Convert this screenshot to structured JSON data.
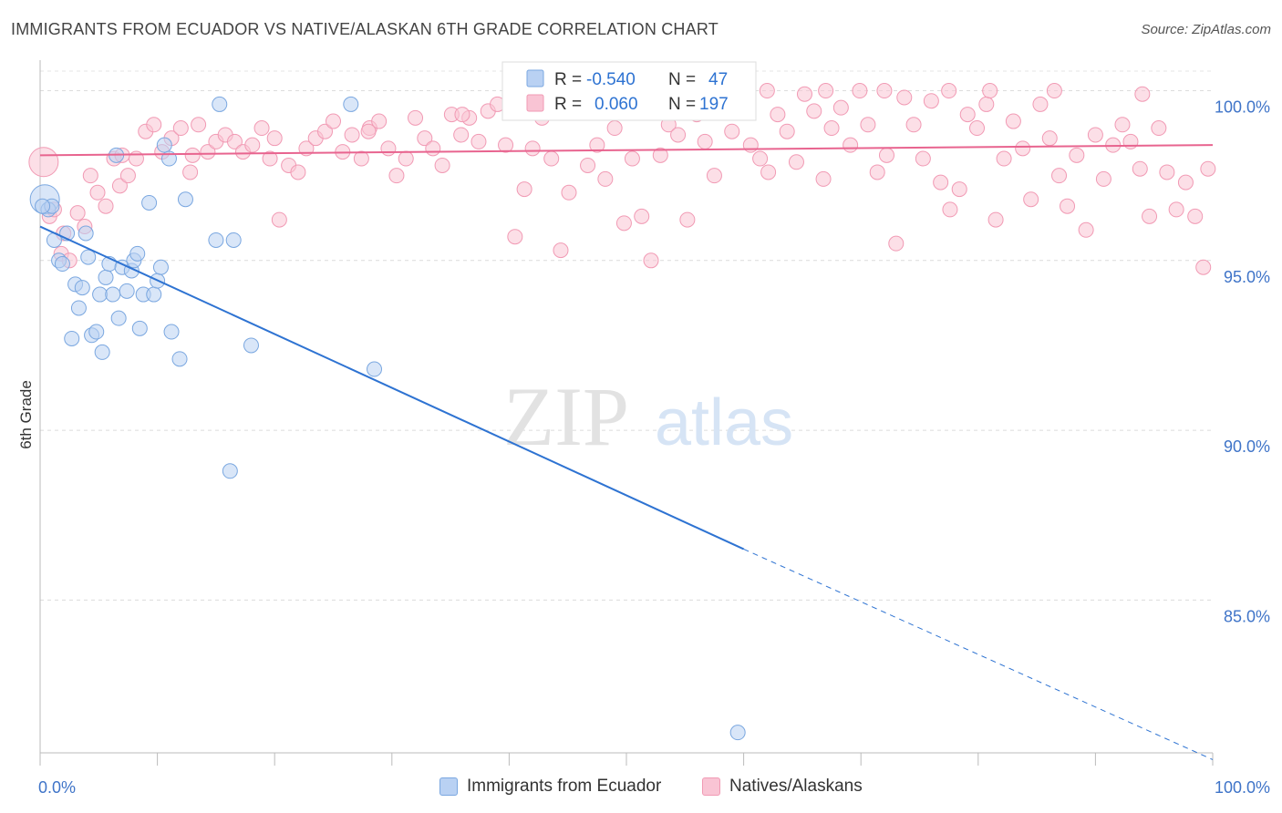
{
  "title": "IMMIGRANTS FROM ECUADOR VS NATIVE/ALASKAN 6TH GRADE CORRELATION CHART",
  "source": "Source: ZipAtlas.com",
  "watermark": {
    "zip": "ZIP",
    "atlas": "atlas"
  },
  "chart_data": {
    "type": "scatter",
    "xlabel": "",
    "ylabel": "6th Grade",
    "xlim": [
      0,
      100
    ],
    "ylim": [
      80.5,
      100.9
    ],
    "x_tick_labels": [
      {
        "value": 0,
        "label": "0.0%"
      },
      {
        "value": 100,
        "label": "100.0%"
      }
    ],
    "y_ticks": [
      {
        "value": 100,
        "label": "100.0%"
      },
      {
        "value": 95,
        "label": "95.0%"
      },
      {
        "value": 90,
        "label": "90.0%"
      },
      {
        "value": 85,
        "label": "85.0%"
      }
    ],
    "x_minor_ticks": [
      0,
      10,
      20,
      30,
      40,
      50,
      60,
      70,
      80,
      90,
      100
    ],
    "grid": true,
    "legend_stats": [
      {
        "r_label": "R =",
        "r_value": "-0.540",
        "n_label": "N =",
        "n_value": "47"
      },
      {
        "r_label": "R =",
        "r_value": "0.060",
        "n_label": "N =",
        "n_value": "197"
      }
    ],
    "series": [
      {
        "name": "Immigrants from Ecuador",
        "color": "#7aa7e0",
        "fill": "#b9d1f3",
        "line_color": "#2e73d2",
        "trend": {
          "x0": 0,
          "y0": 96.0,
          "x1": 60,
          "y1": 86.5,
          "dash_to_x": 100,
          "dash_to_y": 80.3
        },
        "points": [
          {
            "x": 0.4,
            "y": 96.8
          },
          {
            "x": 0.7,
            "y": 96.5
          },
          {
            "x": 1.2,
            "y": 95.6
          },
          {
            "x": 1.6,
            "y": 95.0
          },
          {
            "x": 1.9,
            "y": 94.9
          },
          {
            "x": 2.3,
            "y": 95.8
          },
          {
            "x": 2.7,
            "y": 92.7
          },
          {
            "x": 3.0,
            "y": 94.3
          },
          {
            "x": 3.3,
            "y": 93.6
          },
          {
            "x": 3.6,
            "y": 94.2
          },
          {
            "x": 3.9,
            "y": 95.8
          },
          {
            "x": 4.1,
            "y": 95.1
          },
          {
            "x": 4.4,
            "y": 92.8
          },
          {
            "x": 4.8,
            "y": 92.9
          },
          {
            "x": 5.1,
            "y": 94.0
          },
          {
            "x": 5.3,
            "y": 92.3
          },
          {
            "x": 5.6,
            "y": 94.5
          },
          {
            "x": 5.9,
            "y": 94.9
          },
          {
            "x": 6.2,
            "y": 94.0
          },
          {
            "x": 6.5,
            "y": 98.1
          },
          {
            "x": 6.7,
            "y": 93.3
          },
          {
            "x": 7.0,
            "y": 94.8
          },
          {
            "x": 7.4,
            "y": 94.1
          },
          {
            "x": 7.8,
            "y": 94.7
          },
          {
            "x": 8.0,
            "y": 95.0
          },
          {
            "x": 8.3,
            "y": 95.2
          },
          {
            "x": 8.5,
            "y": 93.0
          },
          {
            "x": 8.8,
            "y": 94.0
          },
          {
            "x": 9.3,
            "y": 96.7
          },
          {
            "x": 9.7,
            "y": 94.0
          },
          {
            "x": 10.0,
            "y": 94.4
          },
          {
            "x": 10.3,
            "y": 94.8
          },
          {
            "x": 10.6,
            "y": 98.4
          },
          {
            "x": 11.0,
            "y": 98.0
          },
          {
            "x": 11.2,
            "y": 92.9
          },
          {
            "x": 11.9,
            "y": 92.1
          },
          {
            "x": 12.4,
            "y": 96.8
          },
          {
            "x": 15.3,
            "y": 99.6
          },
          {
            "x": 15.0,
            "y": 95.6
          },
          {
            "x": 16.5,
            "y": 95.6
          },
          {
            "x": 18.0,
            "y": 92.5
          },
          {
            "x": 16.2,
            "y": 88.8
          },
          {
            "x": 26.5,
            "y": 99.6
          },
          {
            "x": 28.5,
            "y": 91.8
          },
          {
            "x": 59.5,
            "y": 81.1
          },
          {
            "x": 1.0,
            "y": 96.6
          },
          {
            "x": 0.2,
            "y": 96.6
          }
        ]
      },
      {
        "name": "Natives/Alaskans",
        "color": "#f19ab4",
        "fill": "#f9c4d4",
        "line_color": "#e8648f",
        "trend": {
          "x0": 0,
          "y0": 98.1,
          "x1": 100,
          "y1": 98.4
        },
        "points": [
          {
            "x": 0.3,
            "y": 97.9
          },
          {
            "x": 0.8,
            "y": 96.3
          },
          {
            "x": 1.2,
            "y": 96.5
          },
          {
            "x": 1.8,
            "y": 95.2
          },
          {
            "x": 2.5,
            "y": 95.0
          },
          {
            "x": 3.2,
            "y": 96.4
          },
          {
            "x": 3.8,
            "y": 96.0
          },
          {
            "x": 4.3,
            "y": 97.5
          },
          {
            "x": 4.9,
            "y": 97.0
          },
          {
            "x": 5.6,
            "y": 96.6
          },
          {
            "x": 6.3,
            "y": 98.0
          },
          {
            "x": 6.8,
            "y": 97.2
          },
          {
            "x": 7.5,
            "y": 97.5
          },
          {
            "x": 8.2,
            "y": 98.0
          },
          {
            "x": 9.0,
            "y": 98.8
          },
          {
            "x": 9.7,
            "y": 99.0
          },
          {
            "x": 10.4,
            "y": 98.2
          },
          {
            "x": 11.2,
            "y": 98.6
          },
          {
            "x": 12.0,
            "y": 98.9
          },
          {
            "x": 12.8,
            "y": 97.6
          },
          {
            "x": 13.5,
            "y": 99.0
          },
          {
            "x": 14.3,
            "y": 98.2
          },
          {
            "x": 15.0,
            "y": 98.5
          },
          {
            "x": 15.8,
            "y": 98.7
          },
          {
            "x": 16.6,
            "y": 98.5
          },
          {
            "x": 17.3,
            "y": 98.2
          },
          {
            "x": 18.1,
            "y": 98.4
          },
          {
            "x": 18.9,
            "y": 98.9
          },
          {
            "x": 19.6,
            "y": 98.0
          },
          {
            "x": 20.4,
            "y": 96.2
          },
          {
            "x": 21.2,
            "y": 97.8
          },
          {
            "x": 22.0,
            "y": 97.6
          },
          {
            "x": 22.7,
            "y": 98.3
          },
          {
            "x": 23.5,
            "y": 98.6
          },
          {
            "x": 24.3,
            "y": 98.8
          },
          {
            "x": 25.0,
            "y": 99.1
          },
          {
            "x": 25.8,
            "y": 98.2
          },
          {
            "x": 26.6,
            "y": 98.7
          },
          {
            "x": 27.4,
            "y": 98.0
          },
          {
            "x": 28.1,
            "y": 98.9
          },
          {
            "x": 28.9,
            "y": 99.1
          },
          {
            "x": 29.7,
            "y": 98.3
          },
          {
            "x": 30.4,
            "y": 97.5
          },
          {
            "x": 31.2,
            "y": 98.0
          },
          {
            "x": 32.0,
            "y": 99.2
          },
          {
            "x": 32.8,
            "y": 98.6
          },
          {
            "x": 33.5,
            "y": 98.3
          },
          {
            "x": 34.3,
            "y": 97.8
          },
          {
            "x": 35.1,
            "y": 99.3
          },
          {
            "x": 35.9,
            "y": 98.7
          },
          {
            "x": 36.6,
            "y": 99.2
          },
          {
            "x": 37.4,
            "y": 98.5
          },
          {
            "x": 38.2,
            "y": 99.4
          },
          {
            "x": 39.0,
            "y": 99.6
          },
          {
            "x": 39.7,
            "y": 98.4
          },
          {
            "x": 40.5,
            "y": 95.7
          },
          {
            "x": 41.3,
            "y": 97.1
          },
          {
            "x": 42.0,
            "y": 98.3
          },
          {
            "x": 42.8,
            "y": 99.2
          },
          {
            "x": 43.6,
            "y": 98.0
          },
          {
            "x": 44.4,
            "y": 95.3
          },
          {
            "x": 45.1,
            "y": 97.0
          },
          {
            "x": 45.9,
            "y": 99.6
          },
          {
            "x": 46.7,
            "y": 97.8
          },
          {
            "x": 47.5,
            "y": 98.4
          },
          {
            "x": 48.2,
            "y": 97.4
          },
          {
            "x": 49.0,
            "y": 98.9
          },
          {
            "x": 49.8,
            "y": 96.1
          },
          {
            "x": 50.5,
            "y": 98.0
          },
          {
            "x": 51.3,
            "y": 96.3
          },
          {
            "x": 52.1,
            "y": 95.0
          },
          {
            "x": 52.9,
            "y": 98.1
          },
          {
            "x": 53.6,
            "y": 99.0
          },
          {
            "x": 54.4,
            "y": 98.7
          },
          {
            "x": 55.2,
            "y": 96.2
          },
          {
            "x": 56.0,
            "y": 99.3
          },
          {
            "x": 56.7,
            "y": 98.5
          },
          {
            "x": 57.5,
            "y": 97.5
          },
          {
            "x": 58.3,
            "y": 99.6
          },
          {
            "x": 59.0,
            "y": 98.8
          },
          {
            "x": 59.8,
            "y": 100.0
          },
          {
            "x": 60.6,
            "y": 98.4
          },
          {
            "x": 61.4,
            "y": 98.0
          },
          {
            "x": 62.1,
            "y": 97.6
          },
          {
            "x": 62.9,
            "y": 99.3
          },
          {
            "x": 63.7,
            "y": 98.8
          },
          {
            "x": 64.5,
            "y": 97.9
          },
          {
            "x": 65.2,
            "y": 99.9
          },
          {
            "x": 66.0,
            "y": 99.4
          },
          {
            "x": 66.8,
            "y": 97.4
          },
          {
            "x": 67.5,
            "y": 98.9
          },
          {
            "x": 68.3,
            "y": 99.5
          },
          {
            "x": 69.1,
            "y": 98.4
          },
          {
            "x": 69.9,
            "y": 100.0
          },
          {
            "x": 70.6,
            "y": 99.0
          },
          {
            "x": 71.4,
            "y": 97.6
          },
          {
            "x": 72.2,
            "y": 98.1
          },
          {
            "x": 73.0,
            "y": 95.5
          },
          {
            "x": 73.7,
            "y": 99.8
          },
          {
            "x": 74.5,
            "y": 99.0
          },
          {
            "x": 75.3,
            "y": 98.0
          },
          {
            "x": 76.0,
            "y": 99.7
          },
          {
            "x": 76.8,
            "y": 97.3
          },
          {
            "x": 77.6,
            "y": 96.5
          },
          {
            "x": 78.4,
            "y": 97.1
          },
          {
            "x": 79.1,
            "y": 99.3
          },
          {
            "x": 79.9,
            "y": 98.9
          },
          {
            "x": 80.7,
            "y": 99.6
          },
          {
            "x": 81.5,
            "y": 96.2
          },
          {
            "x": 82.2,
            "y": 98.0
          },
          {
            "x": 83.0,
            "y": 99.1
          },
          {
            "x": 83.8,
            "y": 98.3
          },
          {
            "x": 84.5,
            "y": 96.8
          },
          {
            "x": 85.3,
            "y": 99.6
          },
          {
            "x": 86.1,
            "y": 98.6
          },
          {
            "x": 86.9,
            "y": 97.5
          },
          {
            "x": 87.6,
            "y": 96.6
          },
          {
            "x": 88.4,
            "y": 98.1
          },
          {
            "x": 89.2,
            "y": 95.9
          },
          {
            "x": 90.0,
            "y": 98.7
          },
          {
            "x": 90.7,
            "y": 97.4
          },
          {
            "x": 91.5,
            "y": 98.4
          },
          {
            "x": 92.3,
            "y": 99.0
          },
          {
            "x": 93.0,
            "y": 98.5
          },
          {
            "x": 93.8,
            "y": 97.7
          },
          {
            "x": 94.6,
            "y": 96.3
          },
          {
            "x": 95.4,
            "y": 98.9
          },
          {
            "x": 96.1,
            "y": 97.6
          },
          {
            "x": 96.9,
            "y": 96.5
          },
          {
            "x": 97.7,
            "y": 97.3
          },
          {
            "x": 98.5,
            "y": 96.3
          },
          {
            "x": 99.2,
            "y": 94.8
          },
          {
            "x": 99.6,
            "y": 97.7
          },
          {
            "x": 94.0,
            "y": 99.9
          },
          {
            "x": 86.5,
            "y": 100.0
          },
          {
            "x": 81.0,
            "y": 100.0
          },
          {
            "x": 77.5,
            "y": 100.0
          },
          {
            "x": 72.0,
            "y": 100.0
          },
          {
            "x": 67.0,
            "y": 100.0
          },
          {
            "x": 62.0,
            "y": 100.0
          },
          {
            "x": 57.5,
            "y": 99.6
          },
          {
            "x": 44.0,
            "y": 99.5
          },
          {
            "x": 36.0,
            "y": 99.3
          },
          {
            "x": 28.0,
            "y": 98.8
          },
          {
            "x": 20.0,
            "y": 98.6
          },
          {
            "x": 13.0,
            "y": 98.1
          },
          {
            "x": 7.0,
            "y": 98.1
          },
          {
            "x": 2.0,
            "y": 95.8
          }
        ]
      }
    ]
  }
}
